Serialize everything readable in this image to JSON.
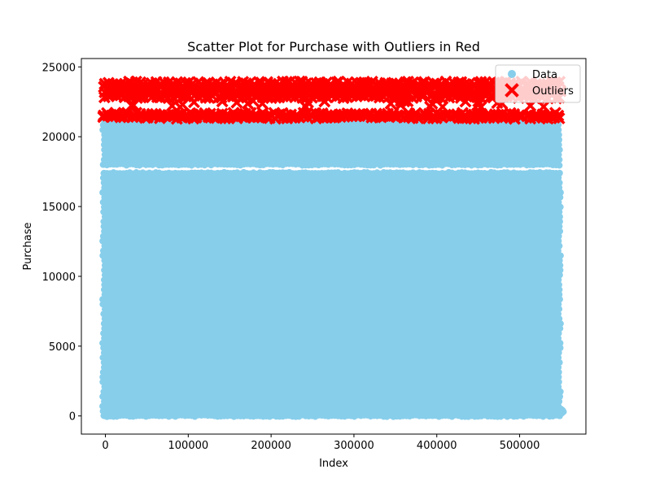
{
  "chart_data": {
    "type": "scatter",
    "title": "Scatter Plot for Purchase with Outliers in Red",
    "xlabel": "Index",
    "ylabel": "Purchase",
    "xlim": [
      -29000,
      580000
    ],
    "ylim": [
      -1300,
      25600
    ],
    "x_ticks": [
      0,
      100000,
      200000,
      300000,
      400000,
      500000
    ],
    "x_tick_labels": [
      "0",
      "100000",
      "200000",
      "300000",
      "400000",
      "500000"
    ],
    "y_ticks": [
      0,
      5000,
      10000,
      15000,
      20000,
      25000
    ],
    "y_tick_labels": [
      "0",
      "5000",
      "10000",
      "15000",
      "20000",
      "25000"
    ],
    "grid": false,
    "legend_position": "top-right",
    "series": [
      {
        "name": "Data",
        "marker": "circle",
        "color": "#87ceeb",
        "bands": [
          {
            "x": [
              -2000,
              548000
            ],
            "y": [
              0,
              17400
            ]
          },
          {
            "x": [
              -2000,
              548000
            ],
            "y": [
              18000,
              21200
            ]
          }
        ],
        "extra_points": [
          [
            549000,
            300
          ],
          [
            550000,
            500
          ],
          [
            551000,
            200
          ],
          [
            552000,
            400
          ],
          [
            548500,
            100
          ],
          [
            553000,
            300
          ]
        ]
      },
      {
        "name": "Outliers",
        "marker": "x",
        "color": "#ff0000",
        "bands": [
          {
            "x": [
              -2000,
              548000
            ],
            "y": [
              22700,
              24000
            ]
          },
          {
            "x": [
              -2000,
              548000
            ],
            "y": [
              21300,
              21700
            ]
          }
        ]
      }
    ]
  }
}
